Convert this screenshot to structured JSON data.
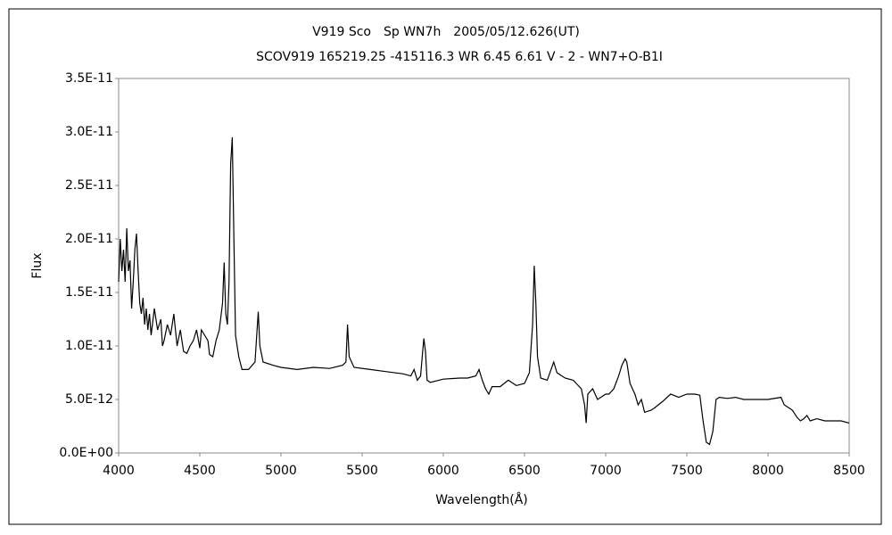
{
  "chart_data": {
    "type": "line",
    "title": "V919 Sco　Sp WN7h　2005/05/12.626(UT)",
    "subtitle": "SCOV919 165219.25 -415116.3 WR 6.45 6.61 V - 2 - WN7+O-B1I",
    "x_label": "Wavelength(Å)",
    "y_label": "Flux",
    "color": "#000000",
    "xlim": [
      4000,
      8500
    ],
    "xticks": [
      4000,
      4500,
      5000,
      5500,
      6000,
      6500,
      7000,
      7500,
      8000,
      8500
    ],
    "ylim": [
      0,
      3.5e-11
    ],
    "yticks": [
      {
        "value": 0,
        "label": "0.0E+00"
      },
      {
        "value": 5e-12,
        "label": "5.0E-12"
      },
      {
        "value": 1e-11,
        "label": "1.0E-11"
      },
      {
        "value": 1.5e-11,
        "label": "1.5E-11"
      },
      {
        "value": 2e-11,
        "label": "2.0E-11"
      },
      {
        "value": 2.5e-11,
        "label": "2.5E-11"
      },
      {
        "value": 3e-11,
        "label": "3.0E-11"
      },
      {
        "value": 3.5e-11,
        "label": "3.5E-11"
      }
    ],
    "x": [
      4000,
      4010,
      4020,
      4030,
      4040,
      4050,
      4060,
      4070,
      4080,
      4090,
      4100,
      4110,
      4120,
      4130,
      4140,
      4150,
      4160,
      4170,
      4180,
      4190,
      4200,
      4220,
      4240,
      4260,
      4270,
      4280,
      4300,
      4320,
      4340,
      4360,
      4380,
      4400,
      4420,
      4440,
      4460,
      4480,
      4500,
      4510,
      4530,
      4550,
      4560,
      4580,
      4600,
      4620,
      4640,
      4650,
      4660,
      4670,
      4680,
      4690,
      4700,
      4710,
      4720,
      4740,
      4760,
      4800,
      4840,
      4860,
      4870,
      4890,
      4950,
      5000,
      5100,
      5200,
      5300,
      5380,
      5400,
      5410,
      5420,
      5450,
      5550,
      5650,
      5750,
      5800,
      5820,
      5840,
      5860,
      5870,
      5880,
      5890,
      5900,
      5920,
      6000,
      6100,
      6150,
      6200,
      6220,
      6240,
      6260,
      6280,
      6300,
      6350,
      6400,
      6450,
      6500,
      6530,
      6550,
      6560,
      6570,
      6580,
      6600,
      6640,
      6680,
      6700,
      6750,
      6800,
      6850,
      6870,
      6880,
      6890,
      6920,
      6950,
      7000,
      7020,
      7050,
      7080,
      7100,
      7120,
      7130,
      7150,
      7180,
      7200,
      7220,
      7240,
      7280,
      7300,
      7350,
      7400,
      7450,
      7500,
      7550,
      7580,
      7600,
      7620,
      7640,
      7660,
      7680,
      7700,
      7750,
      7800,
      7850,
      7900,
      8000,
      8080,
      8100,
      8150,
      8180,
      8200,
      8220,
      8240,
      8260,
      8300,
      8350,
      8400,
      8450,
      8500
    ],
    "values": [
      1.6e-11,
      2e-11,
      1.7e-11,
      1.9e-11,
      1.6e-11,
      2.1e-11,
      1.7e-11,
      1.8e-11,
      1.35e-11,
      1.6e-11,
      1.9e-11,
      2.05e-11,
      1.7e-11,
      1.4e-11,
      1.3e-11,
      1.45e-11,
      1.2e-11,
      1.35e-11,
      1.15e-11,
      1.3e-11,
      1.1e-11,
      1.35e-11,
      1.15e-11,
      1.25e-11,
      1e-11,
      1.05e-11,
      1.2e-11,
      1.1e-11,
      1.3e-11,
      1e-11,
      1.15e-11,
      9.5e-12,
      9.3e-12,
      1e-11,
      1.05e-11,
      1.15e-11,
      9.8e-12,
      1.15e-11,
      1.1e-11,
      1.05e-11,
      9.2e-12,
      9e-12,
      1.05e-11,
      1.15e-11,
      1.4e-11,
      1.78e-11,
      1.3e-11,
      1.2e-11,
      1.6e-11,
      2.7e-11,
      2.95e-11,
      2e-11,
      1.1e-11,
      9e-12,
      7.8e-12,
      7.8e-12,
      8.5e-12,
      1.32e-11,
      1e-11,
      8.5e-12,
      8.2e-12,
      8e-12,
      7.8e-12,
      8e-12,
      7.9e-12,
      8.2e-12,
      8.5e-12,
      1.2e-11,
      9e-12,
      8e-12,
      7.8e-12,
      7.6e-12,
      7.4e-12,
      7.2e-12,
      7.8e-12,
      6.8e-12,
      7.2e-12,
      9e-12,
      1.07e-11,
      9.5e-12,
      6.8e-12,
      6.6e-12,
      6.9e-12,
      7e-12,
      7e-12,
      7.2e-12,
      7.8e-12,
      6.8e-12,
      6e-12,
      5.5e-12,
      6.2e-12,
      6.2e-12,
      6.8e-12,
      6.3e-12,
      6.5e-12,
      7.5e-12,
      1.2e-11,
      1.75e-11,
      1.4e-11,
      9e-12,
      7e-12,
      6.8e-12,
      8.5e-12,
      7.5e-12,
      7e-12,
      6.8e-12,
      6e-12,
      4.5e-12,
      2.8e-12,
      5.5e-12,
      6e-12,
      5e-12,
      5.5e-12,
      5.5e-12,
      6e-12,
      7.2e-12,
      8.2e-12,
      8.8e-12,
      8.5e-12,
      6.5e-12,
      5.5e-12,
      4.5e-12,
      5e-12,
      3.8e-12,
      4e-12,
      4.2e-12,
      4.8e-12,
      5.5e-12,
      5.2e-12,
      5.5e-12,
      5.5e-12,
      5.4e-12,
      3e-12,
      1e-12,
      8e-13,
      2e-12,
      5e-12,
      5.2e-12,
      5.1e-12,
      5.2e-12,
      5e-12,
      5e-12,
      5e-12,
      5.2e-12,
      4.5e-12,
      4e-12,
      3.3e-12,
      3e-12,
      3.2e-12,
      3.5e-12,
      3e-12,
      3.2e-12,
      3e-12,
      3e-12,
      3e-12,
      2.8e-12
    ]
  }
}
